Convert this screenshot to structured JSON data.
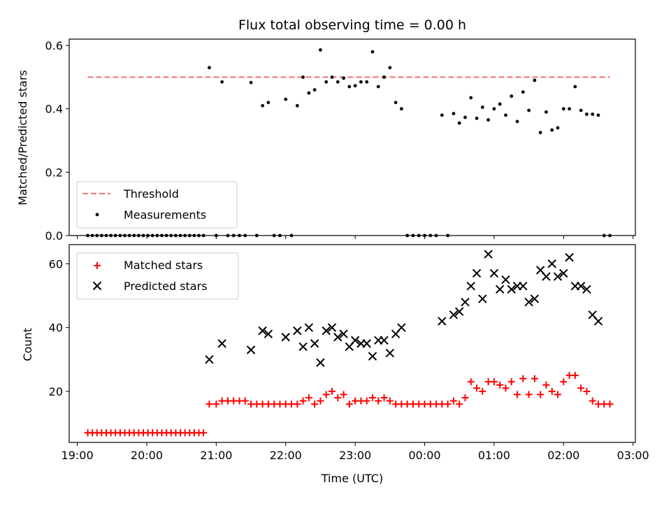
{
  "title": "Flux total observing time = 0.00 h",
  "chart_data": [
    {
      "type": "scatter",
      "ylabel": "Matched/Predicted stars",
      "ylim": [
        0,
        0.62
      ],
      "yticks": [
        "0.0",
        "0.2",
        "0.4",
        "0.6"
      ],
      "xlim": [
        "18:53",
        "03:02"
      ],
      "grid": false,
      "legend_position": "lower-left",
      "threshold": {
        "name": "Threshold",
        "value": 0.5,
        "x_range": [
          "19:09",
          "02:40"
        ],
        "color": "#f07f7f"
      },
      "series": [
        {
          "name": "Measurements",
          "color": "#000000",
          "points": [
            [
              "19:09",
              0
            ],
            [
              "19:13",
              0
            ],
            [
              "19:17",
              0
            ],
            [
              "19:21",
              0
            ],
            [
              "19:25",
              0
            ],
            [
              "19:29",
              0
            ],
            [
              "19:33",
              0
            ],
            [
              "19:37",
              0
            ],
            [
              "19:41",
              0
            ],
            [
              "19:45",
              0
            ],
            [
              "19:49",
              0
            ],
            [
              "19:53",
              0
            ],
            [
              "19:57",
              0
            ],
            [
              "20:01",
              0
            ],
            [
              "20:05",
              0
            ],
            [
              "20:09",
              0
            ],
            [
              "20:13",
              0
            ],
            [
              "20:17",
              0
            ],
            [
              "20:21",
              0
            ],
            [
              "20:25",
              0
            ],
            [
              "20:29",
              0
            ],
            [
              "20:33",
              0
            ],
            [
              "20:37",
              0
            ],
            [
              "20:41",
              0
            ],
            [
              "20:45",
              0
            ],
            [
              "20:49",
              0
            ],
            [
              "20:54",
              0.53
            ],
            [
              "21:00",
              0
            ],
            [
              "21:05",
              0.485
            ],
            [
              "21:10",
              0
            ],
            [
              "21:15",
              0
            ],
            [
              "21:20",
              0
            ],
            [
              "21:25",
              0
            ],
            [
              "21:30",
              0.483
            ],
            [
              "21:35",
              0
            ],
            [
              "21:40",
              0.41
            ],
            [
              "21:45",
              0.42
            ],
            [
              "21:50",
              0
            ],
            [
              "21:55",
              0
            ],
            [
              "22:00",
              0.43
            ],
            [
              "22:05",
              0
            ],
            [
              "22:10",
              0.41
            ],
            [
              "22:15",
              0.5
            ],
            [
              "22:20",
              0.45
            ],
            [
              "22:25",
              0.46
            ],
            [
              "22:30",
              0.586
            ],
            [
              "22:35",
              0.485
            ],
            [
              "22:40",
              0.5
            ],
            [
              "22:45",
              0.485
            ],
            [
              "22:50",
              0.497
            ],
            [
              "22:55",
              0.47
            ],
            [
              "23:00",
              0.473
            ],
            [
              "23:05",
              0.485
            ],
            [
              "23:10",
              0.485
            ],
            [
              "23:15",
              0.58
            ],
            [
              "23:20",
              0.47
            ],
            [
              "23:25",
              0.5
            ],
            [
              "23:30",
              0.53
            ],
            [
              "23:35",
              0.42
            ],
            [
              "23:40",
              0.4
            ],
            [
              "23:45",
              0
            ],
            [
              "23:50",
              0
            ],
            [
              "23:55",
              0
            ],
            [
              "00:00",
              0
            ],
            [
              "00:05",
              0
            ],
            [
              "00:10",
              0
            ],
            [
              "00:15",
              0.38
            ],
            [
              "00:20",
              0
            ],
            [
              "00:25",
              0.385
            ],
            [
              "00:30",
              0.355
            ],
            [
              "00:35",
              0.373
            ],
            [
              "00:40",
              0.435
            ],
            [
              "00:45",
              0.37
            ],
            [
              "00:50",
              0.405
            ],
            [
              "00:55",
              0.365
            ],
            [
              "01:00",
              0.4
            ],
            [
              "01:05",
              0.415
            ],
            [
              "01:10",
              0.38
            ],
            [
              "01:15",
              0.44
            ],
            [
              "01:20",
              0.36
            ],
            [
              "01:25",
              0.453
            ],
            [
              "01:30",
              0.395
            ],
            [
              "01:35",
              0.49
            ],
            [
              "01:40",
              0.325
            ],
            [
              "01:45",
              0.39
            ],
            [
              "01:50",
              0.333
            ],
            [
              "01:55",
              0.34
            ],
            [
              "02:00",
              0.4
            ],
            [
              "02:05",
              0.4
            ],
            [
              "02:10",
              0.47
            ],
            [
              "02:15",
              0.395
            ],
            [
              "02:20",
              0.383
            ],
            [
              "02:25",
              0.383
            ],
            [
              "02:30",
              0.38
            ],
            [
              "02:35",
              0
            ],
            [
              "02:40",
              0
            ]
          ]
        }
      ]
    },
    {
      "type": "scatter",
      "xlabel": "Time (UTC)",
      "ylabel": "Count",
      "ylim": [
        4,
        66
      ],
      "yticks": [
        "20",
        "40",
        "60"
      ],
      "xticks": [
        "19:00",
        "20:00",
        "21:00",
        "22:00",
        "23:00",
        "00:00",
        "01:00",
        "02:00",
        "03:00"
      ],
      "xlim": [
        "18:53",
        "03:02"
      ],
      "grid": false,
      "legend_position": "top-left",
      "series": [
        {
          "name": "Matched stars",
          "color": "#ff0000",
          "marker": "plus",
          "points": [
            [
              "19:09",
              7
            ],
            [
              "19:13",
              7
            ],
            [
              "19:17",
              7
            ],
            [
              "19:21",
              7
            ],
            [
              "19:25",
              7
            ],
            [
              "19:29",
              7
            ],
            [
              "19:33",
              7
            ],
            [
              "19:37",
              7
            ],
            [
              "19:41",
              7
            ],
            [
              "19:45",
              7
            ],
            [
              "19:49",
              7
            ],
            [
              "19:53",
              7
            ],
            [
              "19:57",
              7
            ],
            [
              "20:01",
              7
            ],
            [
              "20:05",
              7
            ],
            [
              "20:09",
              7
            ],
            [
              "20:13",
              7
            ],
            [
              "20:17",
              7
            ],
            [
              "20:21",
              7
            ],
            [
              "20:25",
              7
            ],
            [
              "20:29",
              7
            ],
            [
              "20:33",
              7
            ],
            [
              "20:37",
              7
            ],
            [
              "20:41",
              7
            ],
            [
              "20:45",
              7
            ],
            [
              "20:49",
              7
            ],
            [
              "20:54",
              16
            ],
            [
              "21:00",
              16
            ],
            [
              "21:05",
              17
            ],
            [
              "21:10",
              17
            ],
            [
              "21:15",
              17
            ],
            [
              "21:20",
              17
            ],
            [
              "21:25",
              17
            ],
            [
              "21:30",
              16
            ],
            [
              "21:35",
              16
            ],
            [
              "21:40",
              16
            ],
            [
              "21:45",
              16
            ],
            [
              "21:50",
              16
            ],
            [
              "21:55",
              16
            ],
            [
              "22:00",
              16
            ],
            [
              "22:05",
              16
            ],
            [
              "22:10",
              16
            ],
            [
              "22:15",
              17
            ],
            [
              "22:20",
              18
            ],
            [
              "22:25",
              16
            ],
            [
              "22:30",
              17
            ],
            [
              "22:35",
              19
            ],
            [
              "22:40",
              20
            ],
            [
              "22:45",
              18
            ],
            [
              "22:50",
              19
            ],
            [
              "22:55",
              16
            ],
            [
              "23:00",
              17
            ],
            [
              "23:05",
              17
            ],
            [
              "23:10",
              17
            ],
            [
              "23:15",
              18
            ],
            [
              "23:20",
              17
            ],
            [
              "23:25",
              18
            ],
            [
              "23:30",
              17
            ],
            [
              "23:35",
              16
            ],
            [
              "23:40",
              16
            ],
            [
              "23:45",
              16
            ],
            [
              "23:50",
              16
            ],
            [
              "23:55",
              16
            ],
            [
              "00:00",
              16
            ],
            [
              "00:05",
              16
            ],
            [
              "00:10",
              16
            ],
            [
              "00:15",
              16
            ],
            [
              "00:20",
              16
            ],
            [
              "00:25",
              17
            ],
            [
              "00:30",
              16
            ],
            [
              "00:35",
              18
            ],
            [
              "00:40",
              23
            ],
            [
              "00:45",
              21
            ],
            [
              "00:50",
              20
            ],
            [
              "00:55",
              23
            ],
            [
              "01:00",
              23
            ],
            [
              "01:05",
              22
            ],
            [
              "01:10",
              21
            ],
            [
              "01:15",
              23
            ],
            [
              "01:20",
              19
            ],
            [
              "01:25",
              24
            ],
            [
              "01:30",
              19
            ],
            [
              "01:35",
              24
            ],
            [
              "01:40",
              19
            ],
            [
              "01:45",
              22
            ],
            [
              "01:50",
              20
            ],
            [
              "01:55",
              19
            ],
            [
              "02:00",
              23
            ],
            [
              "02:05",
              25
            ],
            [
              "02:10",
              25
            ],
            [
              "02:15",
              21
            ],
            [
              "02:20",
              20
            ],
            [
              "02:25",
              17
            ],
            [
              "02:30",
              16
            ],
            [
              "02:35",
              16
            ],
            [
              "02:40",
              16
            ]
          ]
        },
        {
          "name": "Predicted stars",
          "color": "#000000",
          "marker": "x",
          "points": [
            [
              "20:54",
              30
            ],
            [
              "21:05",
              35
            ],
            [
              "21:30",
              33
            ],
            [
              "21:40",
              39
            ],
            [
              "21:45",
              38
            ],
            [
              "22:00",
              37
            ],
            [
              "22:10",
              39
            ],
            [
              "22:15",
              34
            ],
            [
              "22:20",
              40
            ],
            [
              "22:25",
              35
            ],
            [
              "22:30",
              29
            ],
            [
              "22:35",
              39
            ],
            [
              "22:40",
              40
            ],
            [
              "22:45",
              37
            ],
            [
              "22:50",
              38
            ],
            [
              "22:55",
              34
            ],
            [
              "23:00",
              36
            ],
            [
              "23:05",
              35
            ],
            [
              "23:10",
              35
            ],
            [
              "23:15",
              31
            ],
            [
              "23:20",
              36
            ],
            [
              "23:25",
              36
            ],
            [
              "23:30",
              32
            ],
            [
              "23:35",
              38
            ],
            [
              "23:40",
              40
            ],
            [
              "00:15",
              42
            ],
            [
              "00:25",
              44
            ],
            [
              "00:30",
              45
            ],
            [
              "00:35",
              48
            ],
            [
              "00:40",
              53
            ],
            [
              "00:45",
              57
            ],
            [
              "00:50",
              49
            ],
            [
              "00:55",
              63
            ],
            [
              "01:00",
              57
            ],
            [
              "01:05",
              52
            ],
            [
              "01:10",
              55
            ],
            [
              "01:15",
              52
            ],
            [
              "01:20",
              53
            ],
            [
              "01:25",
              53
            ],
            [
              "01:30",
              48
            ],
            [
              "01:35",
              49
            ],
            [
              "01:40",
              58
            ],
            [
              "01:45",
              56
            ],
            [
              "01:50",
              60
            ],
            [
              "01:55",
              56
            ],
            [
              "02:00",
              57
            ],
            [
              "02:05",
              62
            ],
            [
              "02:10",
              53
            ],
            [
              "02:15",
              53
            ],
            [
              "02:20",
              52
            ],
            [
              "02:25",
              44
            ],
            [
              "02:30",
              42
            ]
          ]
        }
      ]
    }
  ]
}
